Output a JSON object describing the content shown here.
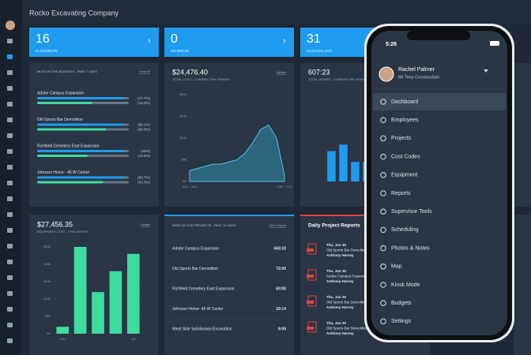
{
  "header": {
    "company": "Rocko Excavating Company"
  },
  "stats": [
    {
      "value": 16,
      "label": "CLOCKED IN"
    },
    {
      "value": 0,
      "label": "ON BREAK"
    },
    {
      "value": 31,
      "label": "CLOCKED OUT"
    }
  ],
  "budgets": {
    "title": "MOST ACTIVE BUDGETS - PAST 7 DAYS",
    "link": "View All",
    "items": [
      {
        "name": "Adobe Campus Expansion",
        "first": "(17.7%)",
        "second": "(14.4%)"
      },
      {
        "name": "Old Sports Bar Demolition",
        "first": "(94.1%)",
        "second": "(68.3%)"
      },
      {
        "name": "Richfield Cemetery East Expansion",
        "first": "(42%)",
        "second": "(16.6%)"
      },
      {
        "name": "Johnson Home - 45 W Center",
        "first": "(89.7%)",
        "second": "(63.3%)"
      }
    ]
  },
  "cost": {
    "total": "$24,476.40",
    "subtitle": "TOTAL COST - CURRENT PAY PERIOD",
    "link": "Details",
    "chart": {
      "type": "area",
      "color": "#2f9fc4",
      "categories": [
        "4/11 - 4/24",
        null,
        null,
        null,
        null,
        null,
        null,
        null,
        null,
        null,
        null,
        null,
        "6/30 - 7/13"
      ],
      "values": [
        5,
        6,
        7,
        8,
        8,
        9,
        10,
        13,
        18,
        24,
        26,
        20,
        3
      ],
      "ylim": [
        0,
        40
      ],
      "yticks": [
        {
          "value": 0,
          "label": "$0"
        },
        {
          "value": 10,
          "label": "$8k"
        },
        {
          "value": 20,
          "label": "$16k"
        },
        {
          "value": 30,
          "label": "$24k"
        },
        {
          "value": 40,
          "label": "$32k"
        }
      ]
    }
  },
  "hours": {
    "total": "607:23",
    "subtitle": "TOTAL HOURS - CURRENT PAY PERIOD",
    "chart": {
      "type": "bar",
      "color": "#1e9bef",
      "values": [
        14,
        17,
        9,
        9
      ],
      "ylim": [
        0,
        40
      ]
    }
  },
  "equipment": {
    "total": "$27,456.35",
    "subtitle": "EQUIPMENT COST - THIS MONTH",
    "link": "Details",
    "chart": {
      "type": "bar",
      "color": "#3ddc9f",
      "categories": [
        "Feb",
        null,
        null,
        null,
        "Jul"
      ],
      "values": [
        2,
        25,
        12,
        18,
        23
      ],
      "ylim": [
        0,
        25
      ],
      "yticks": [
        {
          "value": 0,
          "label": "$0"
        },
        {
          "value": 5,
          "label": "$5k"
        },
        {
          "value": 10,
          "label": "$10k"
        },
        {
          "value": 15,
          "label": "$15k"
        },
        {
          "value": 20,
          "label": "$20k"
        },
        {
          "value": 25,
          "label": "$25k"
        }
      ]
    }
  },
  "projects": {
    "title": "MOST ACTIVE PROJECTS - PAST 14 DAYS",
    "link": "View Report",
    "rows": [
      [
        "Adobe Campus Expansion",
        "443:33"
      ],
      [
        "Old Sports Bar Demolition",
        "72:00"
      ],
      [
        "Richfield Cemetery East Expansion",
        "63:00"
      ],
      [
        "Johnson Home- 45 W Center",
        "19:14"
      ],
      [
        "West Side Subdivision Excavation",
        "9:00"
      ]
    ]
  },
  "reports": {
    "title": "Daily Project Reports",
    "entries": [
      {
        "date": "Thu, Jun 30",
        "project": "Old Sports Bar Demolition",
        "person": "Anthony Harvey"
      },
      {
        "date": "Thu, Jun 30",
        "project": "Adobe Campus Expansion",
        "person": "Anthony Harvey"
      },
      {
        "date": "Thu, Jun 30",
        "project": "Old Sports Bar Demolition",
        "person": "Anthony Harvey"
      },
      {
        "date": "Thu, Jun 30",
        "project": "Old Sports Bar Demolition",
        "person": "Anthony Harvey"
      }
    ]
  },
  "phone": {
    "time": "5:26",
    "user": "Rachel Palmer",
    "company": "Mt Timp Construction",
    "menu": [
      "Dashboard",
      "Employees",
      "Projects",
      "Cost Codes",
      "Equipment",
      "Reports",
      "Supervisor Tools",
      "Scheduling",
      "Photos & Notes",
      "Map",
      "Kiosk Mode",
      "Budgets",
      "Settings"
    ]
  }
}
